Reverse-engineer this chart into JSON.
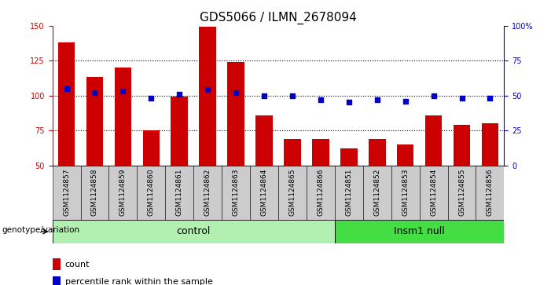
{
  "title": "GDS5066 / ILMN_2678094",
  "categories": [
    "GSM1124857",
    "GSM1124858",
    "GSM1124859",
    "GSM1124860",
    "GSM1124861",
    "GSM1124862",
    "GSM1124863",
    "GSM1124864",
    "GSM1124865",
    "GSM1124866",
    "GSM1124851",
    "GSM1124852",
    "GSM1124853",
    "GSM1124854",
    "GSM1124855",
    "GSM1124856"
  ],
  "counts": [
    138,
    113,
    120,
    75,
    99,
    149,
    124,
    86,
    69,
    69,
    62,
    69,
    65,
    86,
    79,
    80
  ],
  "percentile_ranks": [
    55,
    52,
    53,
    48,
    51,
    54,
    52,
    50,
    50,
    47,
    45,
    47,
    46,
    50,
    48,
    48
  ],
  "n_control": 10,
  "n_insm1": 6,
  "bar_color": "#cc0000",
  "dot_color": "#0000cc",
  "control_bg": "#b2f0b2",
  "insm1_bg": "#44dd44",
  "tick_bg": "#cccccc",
  "ylim_left": [
    50,
    150
  ],
  "ylim_right": [
    0,
    100
  ],
  "yticks_left": [
    50,
    75,
    100,
    125,
    150
  ],
  "yticks_right": [
    0,
    25,
    50,
    75,
    100
  ],
  "ytick_labels_right": [
    "0",
    "25",
    "50",
    "75",
    "100%"
  ],
  "grid_lines": [
    75,
    100,
    125
  ],
  "genotype_label": "genotype/variation",
  "control_label": "control",
  "insm1_label": "Insm1 null",
  "legend_count": "count",
  "legend_percentile": "percentile rank within the sample",
  "title_fontsize": 11,
  "tick_fontsize": 7,
  "label_fontsize": 8,
  "legend_fontsize": 8
}
